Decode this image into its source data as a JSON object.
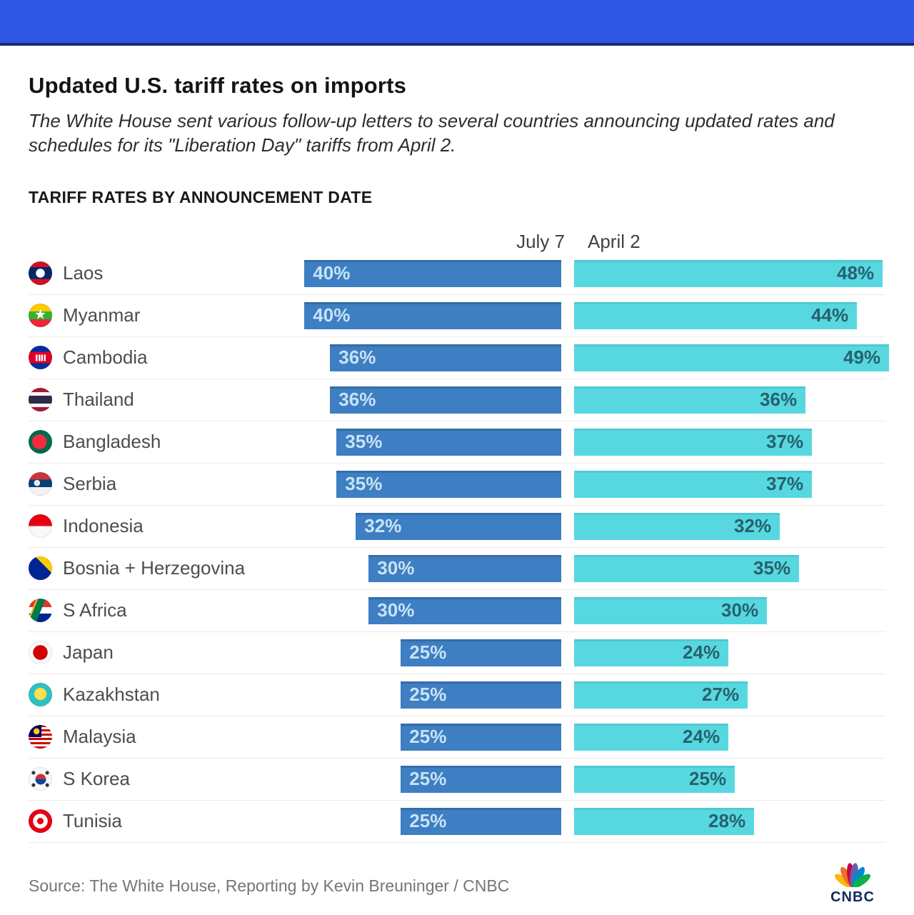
{
  "banner": {
    "color": "#2f56e3",
    "border_color": "#1b2a77"
  },
  "header": {
    "title": "Updated U.S. tariff rates on imports",
    "subtitle": "The White House sent various follow-up letters to several countries announcing updated rates and schedules for its \"Liberation Day\" tariffs from April 2."
  },
  "chart": {
    "section_title": "TARIFF RATES BY ANNOUNCEMENT DATE",
    "col_left": "July 7",
    "col_right": "April 2",
    "flags": [
      "laos",
      "myanmar",
      "cambodia",
      "thailand",
      "bangladesh",
      "serbia",
      "indonesia",
      "bosnia",
      "safrica",
      "japan",
      "kazakhstan",
      "malaysia",
      "skorea",
      "tunisia"
    ],
    "unit": "%"
  },
  "chart_data": {
    "type": "bar",
    "orientation": "horizontal-mirrored",
    "title": "TARIFF RATES BY ANNOUNCEMENT DATE",
    "categories": [
      "Laos",
      "Myanmar",
      "Cambodia",
      "Thailand",
      "Bangladesh",
      "Serbia",
      "Indonesia",
      "Bosnia + Herzegovina",
      "S Africa",
      "Japan",
      "Kazakhstan",
      "Malaysia",
      "S Korea",
      "Tunisia"
    ],
    "series": [
      {
        "name": "July 7",
        "color": "#3e7ec2",
        "values": [
          40,
          40,
          36,
          36,
          35,
          35,
          32,
          30,
          30,
          25,
          25,
          25,
          25,
          25
        ]
      },
      {
        "name": "April 2",
        "color": "#57d8e1",
        "values": [
          48,
          44,
          49,
          36,
          37,
          37,
          32,
          35,
          30,
          24,
          27,
          24,
          25,
          28
        ]
      }
    ],
    "unit": "%",
    "value_labels": true,
    "xlim": [
      0,
      49
    ],
    "grid": false,
    "legend_position": "top-as-column-headers"
  },
  "footer": {
    "source": "Source: The White House, Reporting by Kevin Breuninger / CNBC",
    "logo_text": "CNBC"
  }
}
